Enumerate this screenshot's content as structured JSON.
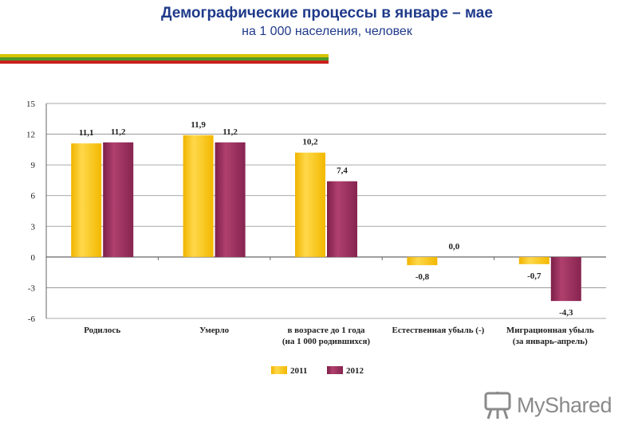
{
  "header": {
    "title": "Демографические процессы в январе – мае",
    "subtitle": "на 1 000 населения, человек"
  },
  "watermark": {
    "text": "MyShared"
  },
  "colors": {
    "series_2011": "#ffc800",
    "series_2012": "#9b2d5c",
    "title": "#1f3a8a"
  },
  "chart_data": {
    "type": "bar",
    "categories": [
      [
        "Родилось"
      ],
      [
        "Умерло"
      ],
      [
        "в возрасте до 1 года",
        "(на 1 000 родившихся)"
      ],
      [
        "Естественная убыль (-)"
      ],
      [
        "Миграционная убыль",
        "(за январь-апрель)"
      ]
    ],
    "series": [
      {
        "name": "2011",
        "values": [
          11.1,
          11.9,
          10.2,
          -0.8,
          -0.7
        ],
        "labels": [
          "11,1",
          "11,9",
          "10,2",
          "-0,8",
          "-0,7"
        ]
      },
      {
        "name": "2012",
        "values": [
          11.2,
          11.2,
          7.4,
          0.0,
          -4.3
        ],
        "labels": [
          "11,2",
          "11,2",
          "7,4",
          "0,0",
          "-4,3"
        ]
      }
    ],
    "yticks": [
      15,
      12,
      9,
      6,
      3,
      0,
      -3,
      -6
    ],
    "ytick_labels": [
      "15",
      "12",
      "9",
      "6",
      "3",
      "0",
      "-3",
      "-6"
    ],
    "ylim": [
      -6,
      15
    ],
    "grid": true,
    "legend_position": "bottom"
  }
}
